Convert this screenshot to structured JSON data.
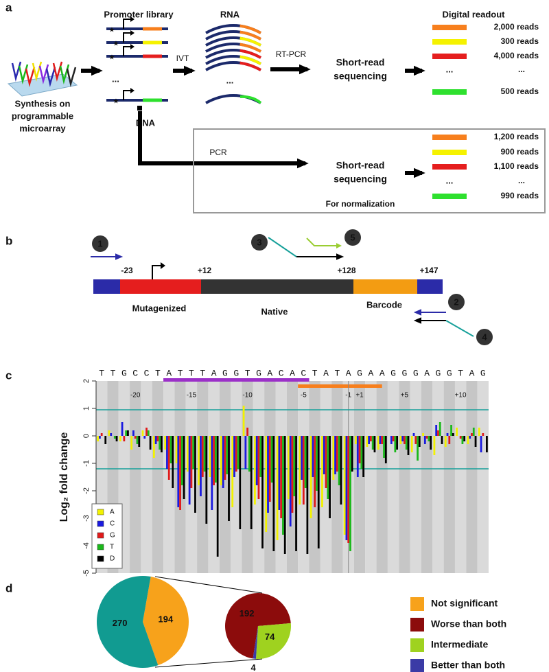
{
  "panel_labels": [
    "a",
    "b",
    "c",
    "d"
  ],
  "panel_a": {
    "microarray_label": [
      "Synthesis on",
      "programmable",
      "microarray"
    ],
    "promoter_library": "Promoter library",
    "library_ellipsis": "...",
    "dna": "DNA",
    "ivt": "IVT",
    "rna": "RNA",
    "rna_ellipsis": "...",
    "rt_pcr": "RT-PCR",
    "sequencing": [
      "Short-read",
      "sequencing"
    ],
    "digital_readout": "Digital readout",
    "reads": [
      "2,000 reads",
      "300 reads",
      "4,000 reads",
      "...",
      "500 reads"
    ],
    "pcr": "PCR",
    "normalization_sequencing": [
      "Short-read",
      "sequencing"
    ],
    "normalization_reads": [
      "1,200 reads",
      "900 reads",
      "1,100 reads",
      "...",
      "990 reads"
    ],
    "normalization_label": "For normalization"
  },
  "panel_b": {
    "steps": [
      "1",
      "2",
      "3",
      "4",
      "5"
    ],
    "positions": [
      "-23",
      "+12",
      "+128",
      "+147"
    ],
    "regions": [
      "Mutagenized",
      "Native",
      "Barcode"
    ]
  },
  "chart_data": [
    {
      "type": "bar",
      "sequence": [
        "T",
        "T",
        "G",
        "C",
        "C",
        "T",
        "A",
        "T",
        "T",
        "T",
        "A",
        "G",
        "G",
        "T",
        "G",
        "A",
        "C",
        "A",
        "C",
        "T",
        "A",
        "T",
        "A",
        "G",
        "A",
        "A",
        "G",
        "G",
        "G",
        "A",
        "G",
        "G",
        "T",
        "A",
        "G"
      ],
      "categories": [
        null,
        null,
        null,
        "-20",
        null,
        null,
        null,
        null,
        "-15",
        null,
        null,
        null,
        null,
        "-10",
        null,
        null,
        null,
        null,
        "-5",
        null,
        null,
        null,
        "-1",
        "+1",
        null,
        null,
        null,
        "+5",
        null,
        null,
        null,
        null,
        "+10",
        null,
        null
      ],
      "y_label": "Log₂ fold change",
      "ylim": [
        -5,
        2
      ],
      "yticks": [
        -5,
        -4,
        -3,
        -2,
        -1,
        0,
        1,
        2
      ],
      "thresholds": [
        0.95,
        -1.2
      ],
      "series": [
        {
          "name": "A",
          "color": "#f2f200",
          "values": [
            -0.2,
            0.2,
            -0.2,
            -0.5,
            0.2,
            -0.8,
            -0.5,
            -1.0,
            -1.3,
            -1.8,
            -1.5,
            -1.8,
            -2.6,
            1.1,
            -2.5,
            -3.5,
            -3.8,
            -2.3,
            -2.5,
            -3.0,
            -2.6,
            -1.6,
            -3.6,
            -0.3,
            -0.4,
            -0.5,
            0.0,
            -0.3,
            -0.6,
            0.1,
            -0.7,
            -0.4,
            0.3,
            -0.3,
            0.3
          ]
        },
        {
          "name": "C",
          "color": "#1a1ae0",
          "values": [
            -0.1,
            0.1,
            0.5,
            0.2,
            -0.1,
            -0.3,
            -1.2,
            -2.6,
            -2.5,
            -2.2,
            -2.7,
            -1.9,
            -1.5,
            -1.2,
            -1.8,
            -2.8,
            -2.7,
            -3.3,
            -1.6,
            -1.5,
            -1.4,
            -1.4,
            -3.8,
            -1.5,
            -0.3,
            -0.3,
            -0.3,
            -0.2,
            0.1,
            -0.3,
            0.4,
            0.1,
            0.0,
            -0.1,
            -0.6
          ]
        },
        {
          "name": "G",
          "color": "#e01a1a",
          "values": [
            0.1,
            0.0,
            -0.2,
            -0.1,
            0.3,
            -0.2,
            -1.6,
            -2.7,
            -1.9,
            -1.5,
            -1.8,
            -1.6,
            -1.3,
            0.3,
            -2.3,
            -2.4,
            -3.0,
            -2.8,
            -2.5,
            -2.6,
            -1.9,
            -1.3,
            -3.9,
            -1.0,
            -0.2,
            -0.3,
            -0.2,
            -0.3,
            -0.3,
            -0.1,
            0.2,
            -0.3,
            -0.1,
            0.1,
            0.1
          ]
        },
        {
          "name": "T",
          "color": "#1ab81a",
          "values": [
            0.0,
            -0.1,
            0.2,
            -0.3,
            0.2,
            -0.5,
            -1.0,
            -1.8,
            -1.2,
            -1.3,
            -1.7,
            -1.4,
            -1.2,
            -1.3,
            -1.5,
            -1.7,
            -3.6,
            -2.2,
            -1.9,
            -2.0,
            -2.3,
            -1.8,
            -4.2,
            -1.2,
            -0.5,
            -0.8,
            -0.6,
            -0.5,
            -0.9,
            -0.2,
            0.5,
            0.4,
            -0.3,
            0.3,
            0.0
          ]
        },
        {
          "name": "D",
          "color": "#000000",
          "values": [
            -0.3,
            -0.2,
            0.2,
            -0.4,
            -0.5,
            -0.6,
            -1.9,
            -2.3,
            -2.8,
            -3.2,
            -4.4,
            -3.1,
            -3.4,
            -3.4,
            -4.1,
            -4.2,
            -4.3,
            -4.2,
            -4.3,
            -4.1,
            -3.0,
            -2.5,
            -1.3,
            -1.5,
            -0.6,
            -1.0,
            -0.5,
            -0.7,
            -0.4,
            -0.5,
            -0.3,
            0.1,
            -0.2,
            -0.4,
            -0.6
          ]
        }
      ]
    },
    {
      "type": "pie",
      "categories": [
        "Not significant",
        null
      ],
      "values": [
        194,
        270
      ],
      "colors": [
        "#f7a21b",
        "#119b91"
      ]
    },
    {
      "type": "pie",
      "categories": [
        "Worse than both",
        "Intermediate",
        "Better than both"
      ],
      "values": [
        192,
        74,
        4
      ],
      "colors": [
        "#8c0c0c",
        "#9fd21f",
        "#3b3ba6"
      ]
    }
  ]
}
